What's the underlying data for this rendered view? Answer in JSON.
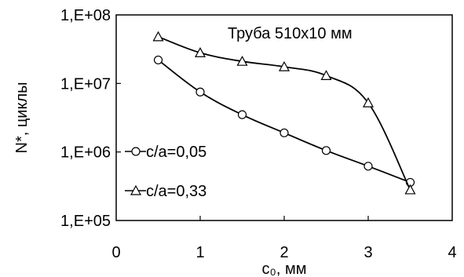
{
  "chart_data": {
    "type": "line",
    "title": "Труба 510х10 мм",
    "xlabel": "c₀, мм",
    "ylabel": "N*, циклы",
    "xlim": [
      0,
      4
    ],
    "ylim": [
      100000,
      100000000
    ],
    "y_scale": "log",
    "x_ticks": [
      "0",
      "1",
      "2",
      "3",
      "4"
    ],
    "y_ticks": [
      "1,E+05",
      "1,E+06",
      "1,E+07",
      "1,E+08"
    ],
    "y_tick_values": [
      100000,
      1000000,
      10000000,
      100000000
    ],
    "grid": false,
    "legend_position": "bottom-left",
    "series": [
      {
        "name": "c/a=0,05",
        "marker": "circle",
        "x": [
          0.5,
          1.0,
          1.5,
          2.0,
          2.5,
          3.0,
          3.5
        ],
        "y": [
          22000000,
          7500000,
          3500000,
          1900000,
          1050000,
          620000,
          360000
        ]
      },
      {
        "name": "c/a=0,33",
        "marker": "triangle",
        "x": [
          0.5,
          1.0,
          1.5,
          2.0,
          2.5,
          3.0,
          3.5
        ],
        "y": [
          48000000,
          28000000,
          21000000,
          17500000,
          13000000,
          5200000,
          280000
        ]
      }
    ]
  }
}
